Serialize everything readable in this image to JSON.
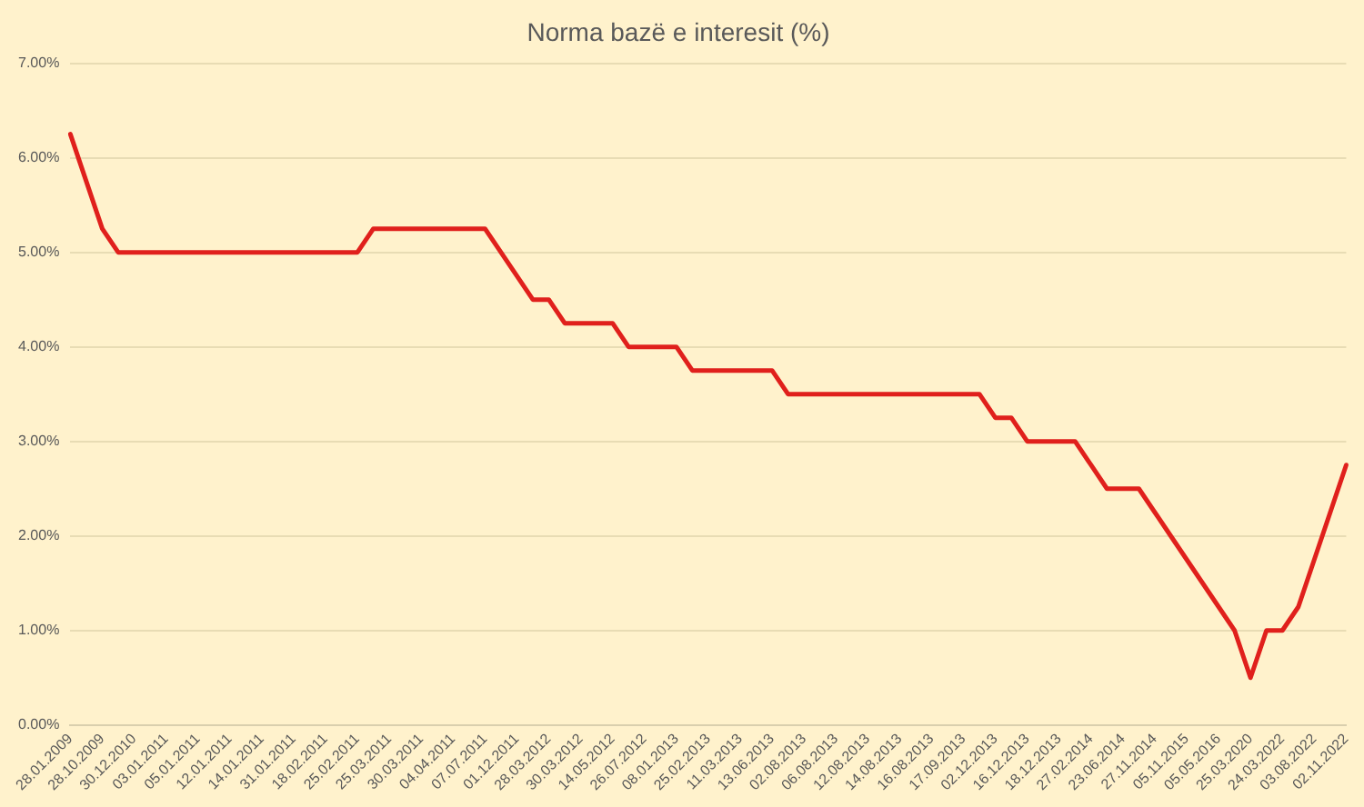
{
  "chart_data": {
    "type": "line",
    "title": "Norma bazë e interesit (%)",
    "categories": [
      "28.01.2009",
      null,
      "28.10.2009",
      null,
      "30.12.2010",
      null,
      "03.01.2011",
      null,
      "05.01.2011",
      null,
      "12.01.2011",
      null,
      "14.01.2011",
      null,
      "31.01.2011",
      null,
      "18.02.2011",
      null,
      "25.02.2011",
      null,
      "25.03.2011",
      null,
      "30.03.2011",
      null,
      "04.04.2011",
      null,
      "07.07.2011",
      null,
      "01.12.2011",
      null,
      "28.03.2012",
      null,
      "30.03.2012",
      null,
      "14.05.2012",
      null,
      "26.07.2012",
      null,
      "08.01.2013",
      null,
      "25.02.2013",
      null,
      "11.03.2013",
      null,
      "13.06.2013",
      null,
      "02.08.2013",
      null,
      "06.08.2013",
      null,
      "12.08.2013",
      null,
      "14.08.2013",
      null,
      "16.08.2013",
      null,
      "17.09.2013",
      null,
      "02.12.2013",
      null,
      "16.12.2013",
      null,
      "18.12.2013",
      null,
      "27.02.2014",
      null,
      "23.06.2014",
      null,
      "27.11.2014",
      null,
      "05.11.2015",
      null,
      "05.05.2016",
      null,
      "25.03.2020",
      null,
      "24.03.2022",
      null,
      "03.08.2022",
      null,
      "02.11.2022"
    ],
    "series": [
      {
        "color": "#e0201c",
        "values": [
          6.25,
          5.75,
          5.25,
          5,
          5,
          5,
          5,
          5,
          5,
          5,
          5,
          5,
          5,
          5,
          5,
          5,
          5,
          5,
          5,
          5.25,
          5.25,
          5.25,
          5.25,
          5.25,
          5.25,
          5.25,
          5.25,
          5,
          4.75,
          4.5,
          4.5,
          4.25,
          4.25,
          4.25,
          4.25,
          4,
          4,
          4,
          4,
          3.75,
          3.75,
          3.75,
          3.75,
          3.75,
          3.75,
          3.5,
          3.5,
          3.5,
          3.5,
          3.5,
          3.5,
          3.5,
          3.5,
          3.5,
          3.5,
          3.5,
          3.5,
          3.5,
          3.25,
          3.25,
          3,
          3,
          3,
          3,
          2.75,
          2.5,
          2.5,
          2.5,
          2.25,
          2,
          1.75,
          1.5,
          1.25,
          1,
          0.5,
          1,
          1,
          1.25,
          1.75,
          2.25,
          2.75
        ]
      }
    ],
    "ylim": [
      0,
      7
    ],
    "yticks": [
      {
        "value": 0,
        "label": "0.00%"
      },
      {
        "value": 1,
        "label": "1.00%"
      },
      {
        "value": 2,
        "label": "2.00%"
      },
      {
        "value": 3,
        "label": "3.00%"
      },
      {
        "value": 4,
        "label": "4.00%"
      },
      {
        "value": 5,
        "label": "5.00%"
      },
      {
        "value": 6,
        "label": "6.00%"
      },
      {
        "value": 7,
        "label": "7.00%"
      }
    ],
    "grid": "y",
    "legend": false,
    "marker": "none",
    "line_style": "solid"
  }
}
